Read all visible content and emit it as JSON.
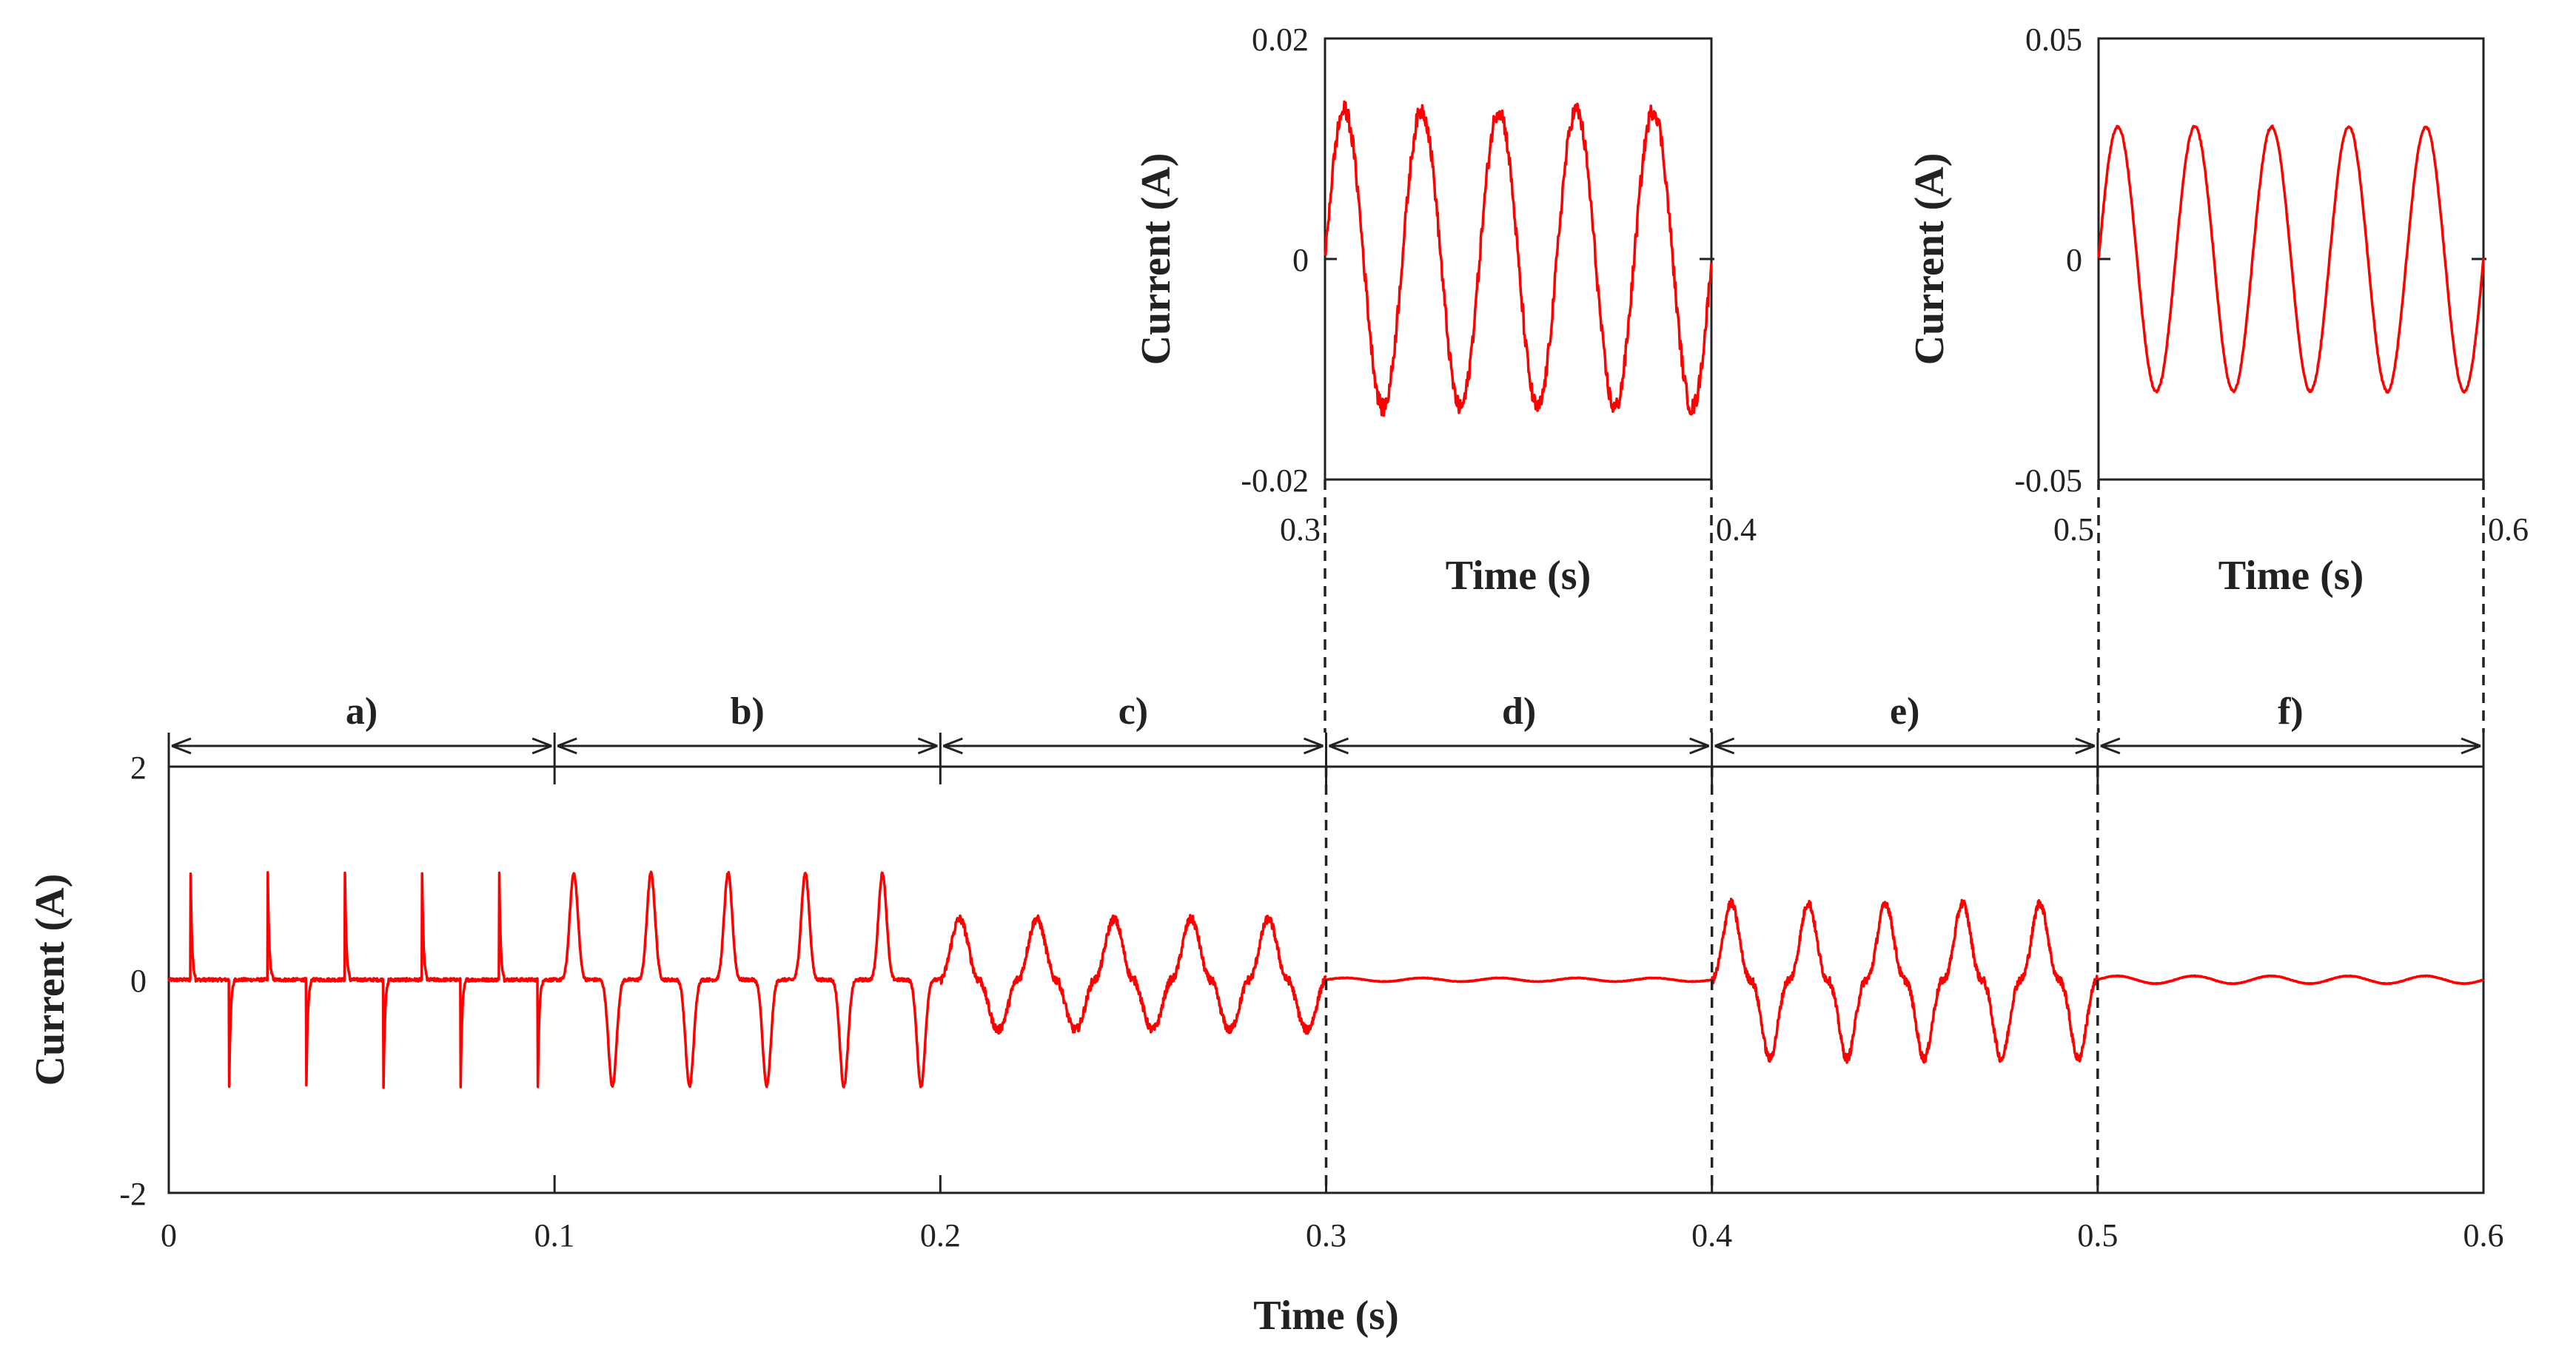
{
  "chart_data": [
    {
      "id": "main",
      "type": "line",
      "title": "",
      "xlabel": "Time (s)",
      "ylabel": "Current (A)",
      "xlim": [
        0,
        0.6
      ],
      "ylim": [
        -2,
        2
      ],
      "xticks": [
        "0",
        "0.1",
        "0.2",
        "0.3",
        "0.4",
        "0.5",
        "0.6"
      ],
      "yticks": [
        "-2",
        "0",
        "2"
      ],
      "series_color": "#ff0000",
      "segments": [
        {
          "label": "a)",
          "start": 0.0,
          "end": 0.1,
          "waveform": "spikes",
          "positive_peak": 1.2,
          "negative_peak": -1.2,
          "period": 0.02
        },
        {
          "label": "b)",
          "start": 0.1,
          "end": 0.2,
          "waveform": "rectified-pulse",
          "positive_peak": 1.0,
          "negative_peak": -1.0,
          "period": 0.02
        },
        {
          "label": "c)",
          "start": 0.2,
          "end": 0.3,
          "waveform": "distorted",
          "positive_peak": 0.75,
          "negative_peak": -0.65,
          "period": 0.02
        },
        {
          "label": "d)",
          "start": 0.3,
          "end": 0.4,
          "waveform": "sine",
          "amplitude": 0.014,
          "period": 0.02
        },
        {
          "label": "e)",
          "start": 0.4,
          "end": 0.5,
          "waveform": "distorted",
          "positive_peak": 0.9,
          "negative_peak": -0.92,
          "period": 0.02
        },
        {
          "label": "f)",
          "start": 0.5,
          "end": 0.6,
          "waveform": "sine",
          "amplitude": 0.03,
          "period": 0.02
        }
      ]
    },
    {
      "id": "inset-d",
      "type": "line",
      "xlabel": "Time (s)",
      "ylabel": "Current (A)",
      "xlim": [
        0.3,
        0.4
      ],
      "ylim": [
        -0.02,
        0.02
      ],
      "xticks": [
        "0.3",
        "0.4"
      ],
      "yticks": [
        "-0.02",
        "0",
        "0.02"
      ],
      "series": [
        {
          "name": "d)",
          "amplitude": 0.0135,
          "period": 0.02,
          "noise": 0.0008
        }
      ]
    },
    {
      "id": "inset-f",
      "type": "line",
      "xlabel": "Time (s)",
      "ylabel": "Current (A)",
      "xlim": [
        0.5,
        0.6
      ],
      "ylim": [
        -0.05,
        0.05
      ],
      "xticks": [
        "0.5",
        "0.6"
      ],
      "yticks": [
        "-0.05",
        "0",
        "0.05"
      ],
      "series": [
        {
          "name": "f)",
          "amplitude": 0.03,
          "period": 0.02,
          "noise": 0.0003
        }
      ]
    }
  ]
}
